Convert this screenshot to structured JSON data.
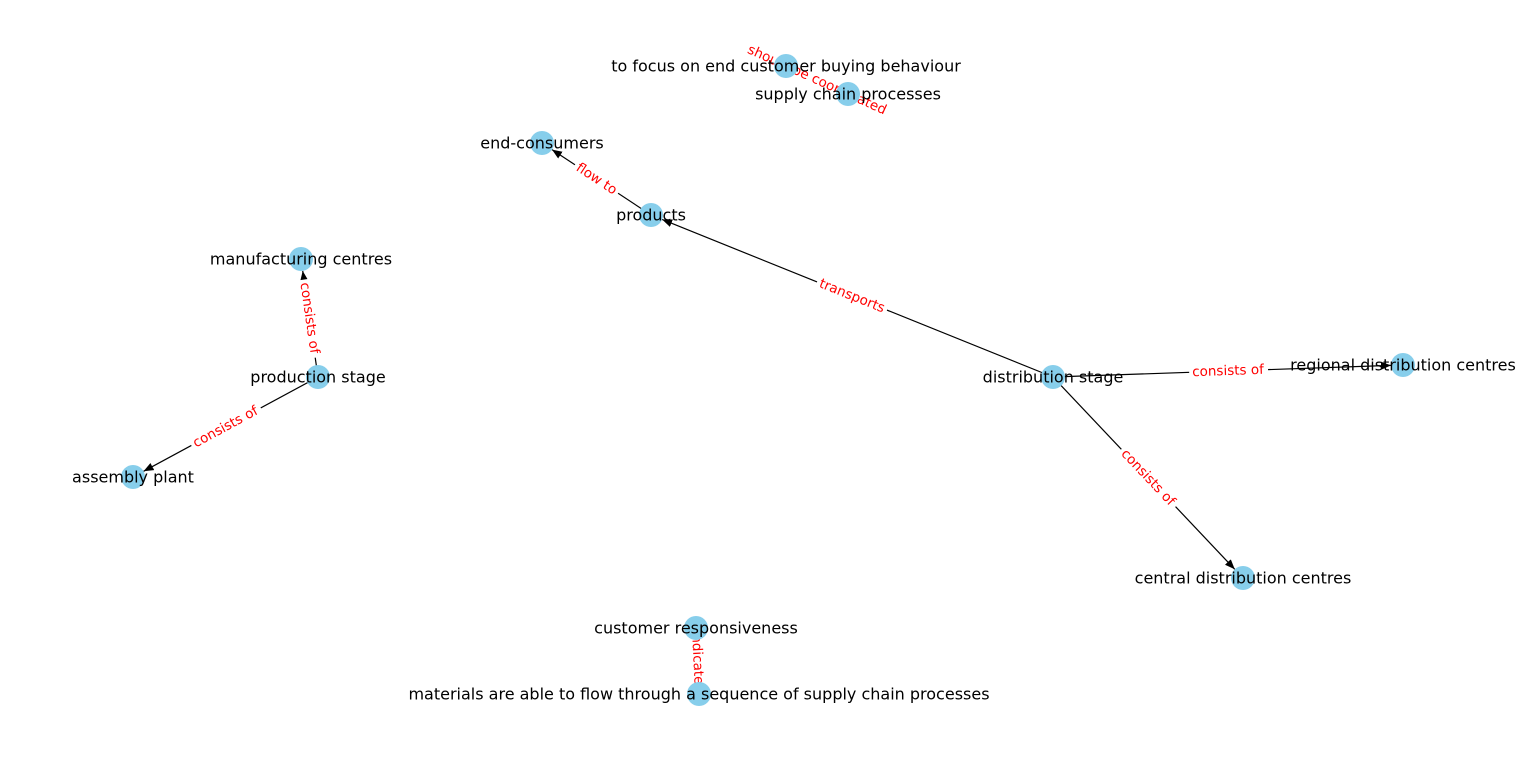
{
  "graph": {
    "node_color": "#87ceeb",
    "label_color": "#000000",
    "edge_color": "#000000",
    "edge_label_color": "#ff0000",
    "nodes": [
      {
        "id": "to-focus",
        "label": "to focus on end customer buying behaviour"
      },
      {
        "id": "supply-chain-processes",
        "label": "supply chain processes"
      },
      {
        "id": "end-consumers",
        "label": "end-consumers"
      },
      {
        "id": "products",
        "label": "products"
      },
      {
        "id": "manufacturing-centres",
        "label": "manufacturing centres"
      },
      {
        "id": "production-stage",
        "label": "production stage"
      },
      {
        "id": "distribution-stage",
        "label": "distribution stage"
      },
      {
        "id": "regional-distribution-centres",
        "label": "regional distribution centres"
      },
      {
        "id": "assembly-plant",
        "label": "assembly plant"
      },
      {
        "id": "central-distribution-centres",
        "label": "central distribution centres"
      },
      {
        "id": "customer-responsiveness",
        "label": "customer responsiveness"
      },
      {
        "id": "materials-flow",
        "label": "materials are able to flow through a sequence of supply chain processes"
      }
    ],
    "edges": [
      {
        "source": "supply-chain-processes",
        "target": "to-focus",
        "label": "should be coordinated",
        "directed": false
      },
      {
        "source": "products",
        "target": "end-consumers",
        "label": "flow to",
        "directed": true
      },
      {
        "source": "distribution-stage",
        "target": "products",
        "label": "transports",
        "directed": true
      },
      {
        "source": "production-stage",
        "target": "manufacturing-centres",
        "label": "consists of",
        "directed": true
      },
      {
        "source": "production-stage",
        "target": "assembly-plant",
        "label": "consists of",
        "directed": true
      },
      {
        "source": "distribution-stage",
        "target": "regional-distribution-centres",
        "label": "consists of",
        "directed": true
      },
      {
        "source": "distribution-stage",
        "target": "central-distribution-centres",
        "label": "consists of",
        "directed": true
      },
      {
        "source": "customer-responsiveness",
        "target": "materials-flow",
        "label": "indicates",
        "directed": false
      }
    ]
  }
}
